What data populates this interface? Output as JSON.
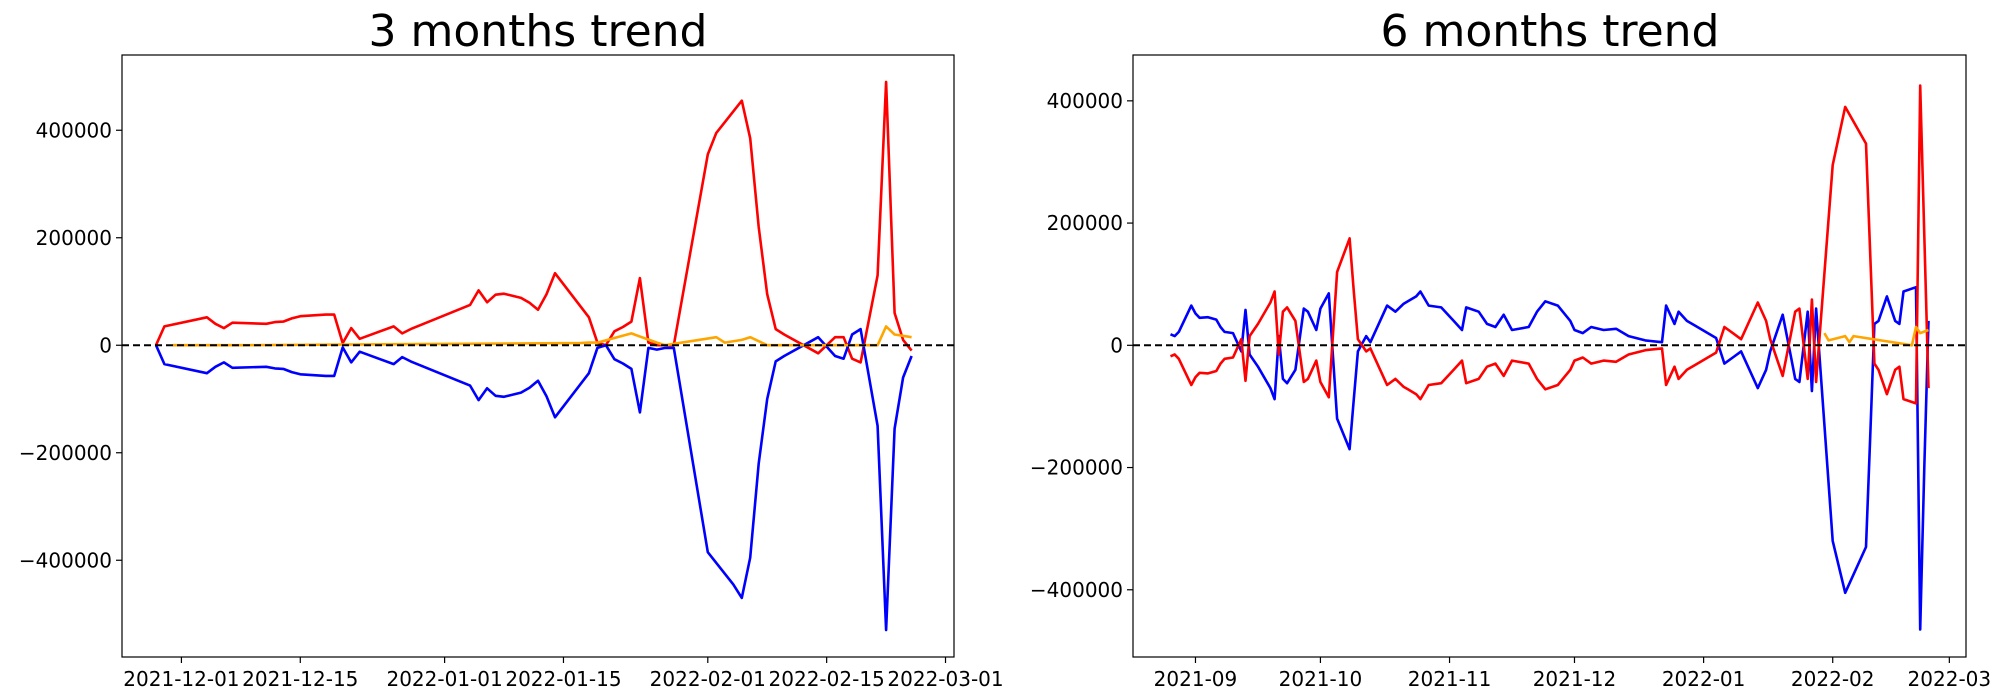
{
  "chart_data": [
    {
      "type": "line",
      "title": "3 months trend",
      "xlabel": "",
      "ylabel": "",
      "x_range": [
        "2021-11-24",
        "2022-03-02"
      ],
      "ylim": [
        -580000,
        540000
      ],
      "x_ticks": [
        "2021-12-01",
        "2021-12-15",
        "2022-01-01",
        "2022-01-15",
        "2022-02-01",
        "2022-02-15",
        "2022-03-01"
      ],
      "x_tick_labels": [
        "2021-12-01",
        "2021-12-15",
        "2022-01-01",
        "2022-01-15",
        "2022-02-01",
        "2022-02-15",
        "2022-03-01"
      ],
      "y_ticks": [
        -400000,
        -200000,
        0,
        200000,
        400000
      ],
      "y_tick_labels": [
        "−400000",
        "−200000",
        "0",
        "200000",
        "400000"
      ],
      "reference_line": {
        "y": 0,
        "style": "dashed",
        "color": "#000000"
      },
      "grid": false,
      "series": [
        {
          "color": "#ff0000",
          "x": [
            "2021-11-28",
            "2021-11-29",
            "2021-12-04",
            "2021-12-05",
            "2021-12-06",
            "2021-12-07",
            "2021-12-11",
            "2021-12-12",
            "2021-12-13",
            "2021-12-14",
            "2021-12-15",
            "2021-12-18",
            "2021-12-19",
            "2021-12-20",
            "2021-12-21",
            "2021-12-22",
            "2021-12-26",
            "2021-12-27",
            "2021-12-28",
            "2022-01-04",
            "2022-01-05",
            "2022-01-06",
            "2022-01-07",
            "2022-01-08",
            "2022-01-10",
            "2022-01-11",
            "2022-01-12",
            "2022-01-13",
            "2022-01-14",
            "2022-01-18",
            "2022-01-19",
            "2022-01-20",
            "2022-01-21",
            "2022-01-22",
            "2022-01-23",
            "2022-01-24",
            "2022-01-25",
            "2022-01-26",
            "2022-01-27",
            "2022-01-28",
            "2022-02-01",
            "2022-02-02",
            "2022-02-03",
            "2022-02-04",
            "2022-02-05",
            "2022-02-06",
            "2022-02-07",
            "2022-02-08",
            "2022-02-09",
            "2022-02-10",
            "2022-02-14",
            "2022-02-16",
            "2022-02-17",
            "2022-02-18",
            "2022-02-19",
            "2022-02-21",
            "2022-02-22",
            "2022-02-23",
            "2022-02-24",
            "2022-02-25"
          ],
          "values": [
            0,
            35000,
            52000,
            40000,
            32000,
            42000,
            40000,
            43000,
            44000,
            50000,
            54000,
            57000,
            57000,
            4000,
            32000,
            12000,
            35000,
            22000,
            30000,
            75000,
            102000,
            80000,
            94000,
            96000,
            88000,
            79000,
            66000,
            95000,
            134000,
            52000,
            5000,
            0,
            26000,
            34000,
            44000,
            125000,
            5000,
            0,
            0,
            0,
            355000,
            395000,
            415000,
            435000,
            455000,
            385000,
            220000,
            95000,
            30000,
            20000,
            -15000,
            15000,
            15000,
            -25000,
            -32000,
            130000,
            490000,
            60000,
            10000,
            -10000
          ]
        },
        {
          "color": "#0000ff",
          "x": [
            "2021-11-28",
            "2021-11-29",
            "2021-12-04",
            "2021-12-05",
            "2021-12-06",
            "2021-12-07",
            "2021-12-11",
            "2021-12-12",
            "2021-12-13",
            "2021-12-14",
            "2021-12-15",
            "2021-12-18",
            "2021-12-19",
            "2021-12-20",
            "2021-12-21",
            "2021-12-22",
            "2021-12-26",
            "2021-12-27",
            "2021-12-28",
            "2022-01-04",
            "2022-01-05",
            "2022-01-06",
            "2022-01-07",
            "2022-01-08",
            "2022-01-10",
            "2022-01-11",
            "2022-01-12",
            "2022-01-13",
            "2022-01-14",
            "2022-01-18",
            "2022-01-19",
            "2022-01-20",
            "2022-01-21",
            "2022-01-22",
            "2022-01-23",
            "2022-01-24",
            "2022-01-25",
            "2022-01-26",
            "2022-01-27",
            "2022-01-28",
            "2022-02-01",
            "2022-02-02",
            "2022-02-03",
            "2022-02-04",
            "2022-02-05",
            "2022-02-06",
            "2022-02-07",
            "2022-02-08",
            "2022-02-09",
            "2022-02-10",
            "2022-02-14",
            "2022-02-16",
            "2022-02-17",
            "2022-02-18",
            "2022-02-19",
            "2022-02-21",
            "2022-02-22",
            "2022-02-23",
            "2022-02-24",
            "2022-02-25"
          ],
          "values": [
            0,
            -35000,
            -52000,
            -40000,
            -32000,
            -42000,
            -40000,
            -43000,
            -44000,
            -50000,
            -54000,
            -57000,
            -57000,
            -4000,
            -32000,
            -12000,
            -35000,
            -22000,
            -30000,
            -75000,
            -102000,
            -80000,
            -94000,
            -96000,
            -88000,
            -79000,
            -66000,
            -95000,
            -134000,
            -52000,
            -5000,
            0,
            -26000,
            -34000,
            -44000,
            -125000,
            -5000,
            -8000,
            -5000,
            -5000,
            -385000,
            -405000,
            -425000,
            -445000,
            -470000,
            -395000,
            -220000,
            -100000,
            -30000,
            -20000,
            15000,
            -20000,
            -25000,
            20000,
            30000,
            -150000,
            -530000,
            -155000,
            -60000,
            -20000
          ]
        },
        {
          "color": "#ffa500",
          "x": [
            "2021-11-30",
            "2021-12-08",
            "2022-01-17",
            "2022-01-18",
            "2022-01-19",
            "2022-01-23",
            "2022-01-26",
            "2022-01-27",
            "2022-02-02",
            "2022-02-03",
            "2022-02-05",
            "2022-02-06",
            "2022-02-08",
            "2022-02-21",
            "2022-02-22",
            "2022-02-23",
            "2022-02-25"
          ],
          "values": [
            0,
            0,
            4000,
            5000,
            5000,
            22000,
            5000,
            0,
            15000,
            5000,
            10000,
            15000,
            0,
            0,
            35000,
            20000,
            15000
          ]
        }
      ]
    },
    {
      "type": "line",
      "title": "6 months trend",
      "xlabel": "",
      "ylabel": "",
      "x_range": [
        "2021-08-17",
        "2022-03-05"
      ],
      "ylim": [
        -510000,
        475000
      ],
      "x_ticks": [
        "2021-09-01",
        "2021-10-01",
        "2021-11-01",
        "2021-12-01",
        "2022-01-01",
        "2022-02-01",
        "2022-03-01"
      ],
      "x_tick_labels": [
        "2021-09",
        "2021-10",
        "2021-11",
        "2021-12",
        "2022-01",
        "2022-02",
        "2022-03"
      ],
      "y_ticks": [
        -400000,
        -200000,
        0,
        200000,
        400000
      ],
      "y_tick_labels": [
        "−400000",
        "−200000",
        "0",
        "200000",
        "400000"
      ],
      "reference_line": {
        "y": 0,
        "style": "dashed",
        "color": "#000000"
      },
      "grid": false,
      "series": [
        {
          "color": "#0000ff",
          "x": [
            "2021-08-26",
            "2021-08-27",
            "2021-08-28",
            "2021-08-31",
            "2021-09-01",
            "2021-09-02",
            "2021-09-04",
            "2021-09-06",
            "2021-09-07",
            "2021-09-08",
            "2021-09-10",
            "2021-09-12",
            "2021-09-13",
            "2021-09-14",
            "2021-09-16",
            "2021-09-19",
            "2021-09-20",
            "2021-09-21",
            "2021-09-22",
            "2021-09-23",
            "2021-09-25",
            "2021-09-27",
            "2021-09-28",
            "2021-09-30",
            "2021-10-01",
            "2021-10-03",
            "2021-10-05",
            "2021-10-08",
            "2021-10-09",
            "2021-10-10",
            "2021-10-12",
            "2021-10-13",
            "2021-10-17",
            "2021-10-18",
            "2021-10-19",
            "2021-10-21",
            "2021-10-22",
            "2021-10-24",
            "2021-10-25",
            "2021-10-27",
            "2021-10-30",
            "2021-11-02",
            "2021-11-04",
            "2021-11-05",
            "2021-11-08",
            "2021-11-10",
            "2021-11-12",
            "2021-11-14",
            "2021-11-16",
            "2021-11-20",
            "2021-11-22",
            "2021-11-24",
            "2021-11-27",
            "2021-11-30",
            "2021-12-01",
            "2021-12-03",
            "2021-12-05",
            "2021-12-08",
            "2021-12-11",
            "2021-12-14",
            "2021-12-18",
            "2021-12-22",
            "2021-12-23",
            "2021-12-25",
            "2021-12-26",
            "2021-12-28",
            "2021-12-30",
            "2022-01-04",
            "2022-01-06",
            "2022-01-08",
            "2022-01-10",
            "2022-01-14",
            "2022-01-16",
            "2022-01-17",
            "2022-01-20",
            "2022-01-22",
            "2022-01-23",
            "2022-01-24",
            "2022-01-26",
            "2022-01-27",
            "2022-01-28",
            "2022-02-01",
            "2022-02-04",
            "2022-02-09",
            "2022-02-10",
            "2022-02-11",
            "2022-02-12",
            "2022-02-14",
            "2022-02-16",
            "2022-02-17",
            "2022-02-18",
            "2022-02-21",
            "2022-02-22",
            "2022-02-23",
            "2022-02-24"
          ],
          "values": [
            18000,
            15000,
            22000,
            65000,
            52000,
            45000,
            46000,
            42000,
            30000,
            22000,
            20000,
            -10000,
            58000,
            -15000,
            -35000,
            -70000,
            -88000,
            15000,
            -55000,
            -62000,
            -40000,
            60000,
            55000,
            25000,
            60000,
            85000,
            -120000,
            -170000,
            -90000,
            -10000,
            15000,
            5000,
            65000,
            60000,
            55000,
            68000,
            72000,
            80000,
            88000,
            65000,
            62000,
            40000,
            25000,
            62000,
            55000,
            35000,
            30000,
            50000,
            25000,
            30000,
            55000,
            72000,
            65000,
            40000,
            25000,
            20000,
            30000,
            25000,
            27000,
            15000,
            8000,
            5000,
            65000,
            35000,
            55000,
            40000,
            32000,
            12000,
            -30000,
            -20000,
            -10000,
            -70000,
            -40000,
            -10000,
            50000,
            -20000,
            -55000,
            -60000,
            55000,
            -75000,
            60000,
            -320000,
            -405000,
            -330000,
            -150000,
            35000,
            40000,
            80000,
            40000,
            35000,
            88000,
            95000,
            -465000,
            -200000,
            40000
          ]
        },
        {
          "color": "#ff0000",
          "x": [
            "2021-08-26",
            "2021-08-27",
            "2021-08-28",
            "2021-08-31",
            "2021-09-01",
            "2021-09-02",
            "2021-09-04",
            "2021-09-06",
            "2021-09-07",
            "2021-09-08",
            "2021-09-10",
            "2021-09-12",
            "2021-09-13",
            "2021-09-14",
            "2021-09-16",
            "2021-09-19",
            "2021-09-20",
            "2021-09-21",
            "2021-09-22",
            "2021-09-23",
            "2021-09-25",
            "2021-09-27",
            "2021-09-28",
            "2021-09-30",
            "2021-10-01",
            "2021-10-03",
            "2021-10-05",
            "2021-10-08",
            "2021-10-09",
            "2021-10-10",
            "2021-10-12",
            "2021-10-13",
            "2021-10-17",
            "2021-10-18",
            "2021-10-19",
            "2021-10-21",
            "2021-10-22",
            "2021-10-24",
            "2021-10-25",
            "2021-10-27",
            "2021-10-30",
            "2021-11-02",
            "2021-11-04",
            "2021-11-05",
            "2021-11-08",
            "2021-11-10",
            "2021-11-12",
            "2021-11-14",
            "2021-11-16",
            "2021-11-20",
            "2021-11-22",
            "2021-11-24",
            "2021-11-27",
            "2021-11-30",
            "2021-12-01",
            "2021-12-03",
            "2021-12-05",
            "2021-12-08",
            "2021-12-11",
            "2021-12-14",
            "2021-12-18",
            "2021-12-22",
            "2021-12-23",
            "2021-12-25",
            "2021-12-26",
            "2021-12-28",
            "2021-12-30",
            "2022-01-04",
            "2022-01-06",
            "2022-01-08",
            "2022-01-10",
            "2022-01-14",
            "2022-01-16",
            "2022-01-17",
            "2022-01-20",
            "2022-01-22",
            "2022-01-23",
            "2022-01-24",
            "2022-01-26",
            "2022-01-27",
            "2022-01-28",
            "2022-02-01",
            "2022-02-04",
            "2022-02-09",
            "2022-02-10",
            "2022-02-11",
            "2022-02-12",
            "2022-02-14",
            "2022-02-16",
            "2022-02-17",
            "2022-02-18",
            "2022-02-21",
            "2022-02-22",
            "2022-02-23",
            "2022-02-24"
          ],
          "values": [
            -18000,
            -15000,
            -22000,
            -65000,
            -52000,
            -45000,
            -46000,
            -42000,
            -30000,
            -22000,
            -20000,
            10000,
            -58000,
            15000,
            35000,
            70000,
            88000,
            -15000,
            55000,
            62000,
            40000,
            -60000,
            -55000,
            -25000,
            -60000,
            -85000,
            120000,
            175000,
            90000,
            10000,
            -10000,
            -5000,
            -65000,
            -60000,
            -55000,
            -68000,
            -72000,
            -80000,
            -88000,
            -65000,
            -62000,
            -40000,
            -25000,
            -62000,
            -55000,
            -35000,
            -30000,
            -50000,
            -25000,
            -30000,
            -55000,
            -72000,
            -65000,
            -40000,
            -25000,
            -20000,
            -30000,
            -25000,
            -27000,
            -15000,
            -8000,
            -5000,
            -65000,
            -35000,
            -55000,
            -40000,
            -32000,
            -12000,
            30000,
            20000,
            10000,
            70000,
            40000,
            10000,
            -50000,
            20000,
            55000,
            60000,
            -55000,
            75000,
            -60000,
            295000,
            390000,
            330000,
            150000,
            -30000,
            -40000,
            -80000,
            -40000,
            -35000,
            -88000,
            -95000,
            425000,
            180000,
            -70000
          ]
        },
        {
          "color": "#ffa500",
          "x": [
            "2022-01-30",
            "2022-01-31",
            "2022-02-04",
            "2022-02-05",
            "2022-02-06",
            "2022-02-20",
            "2022-02-21",
            "2022-02-22",
            "2022-02-24"
          ],
          "values": [
            20000,
            8000,
            15000,
            5000,
            15000,
            0,
            30000,
            20000,
            25000
          ]
        }
      ]
    }
  ]
}
